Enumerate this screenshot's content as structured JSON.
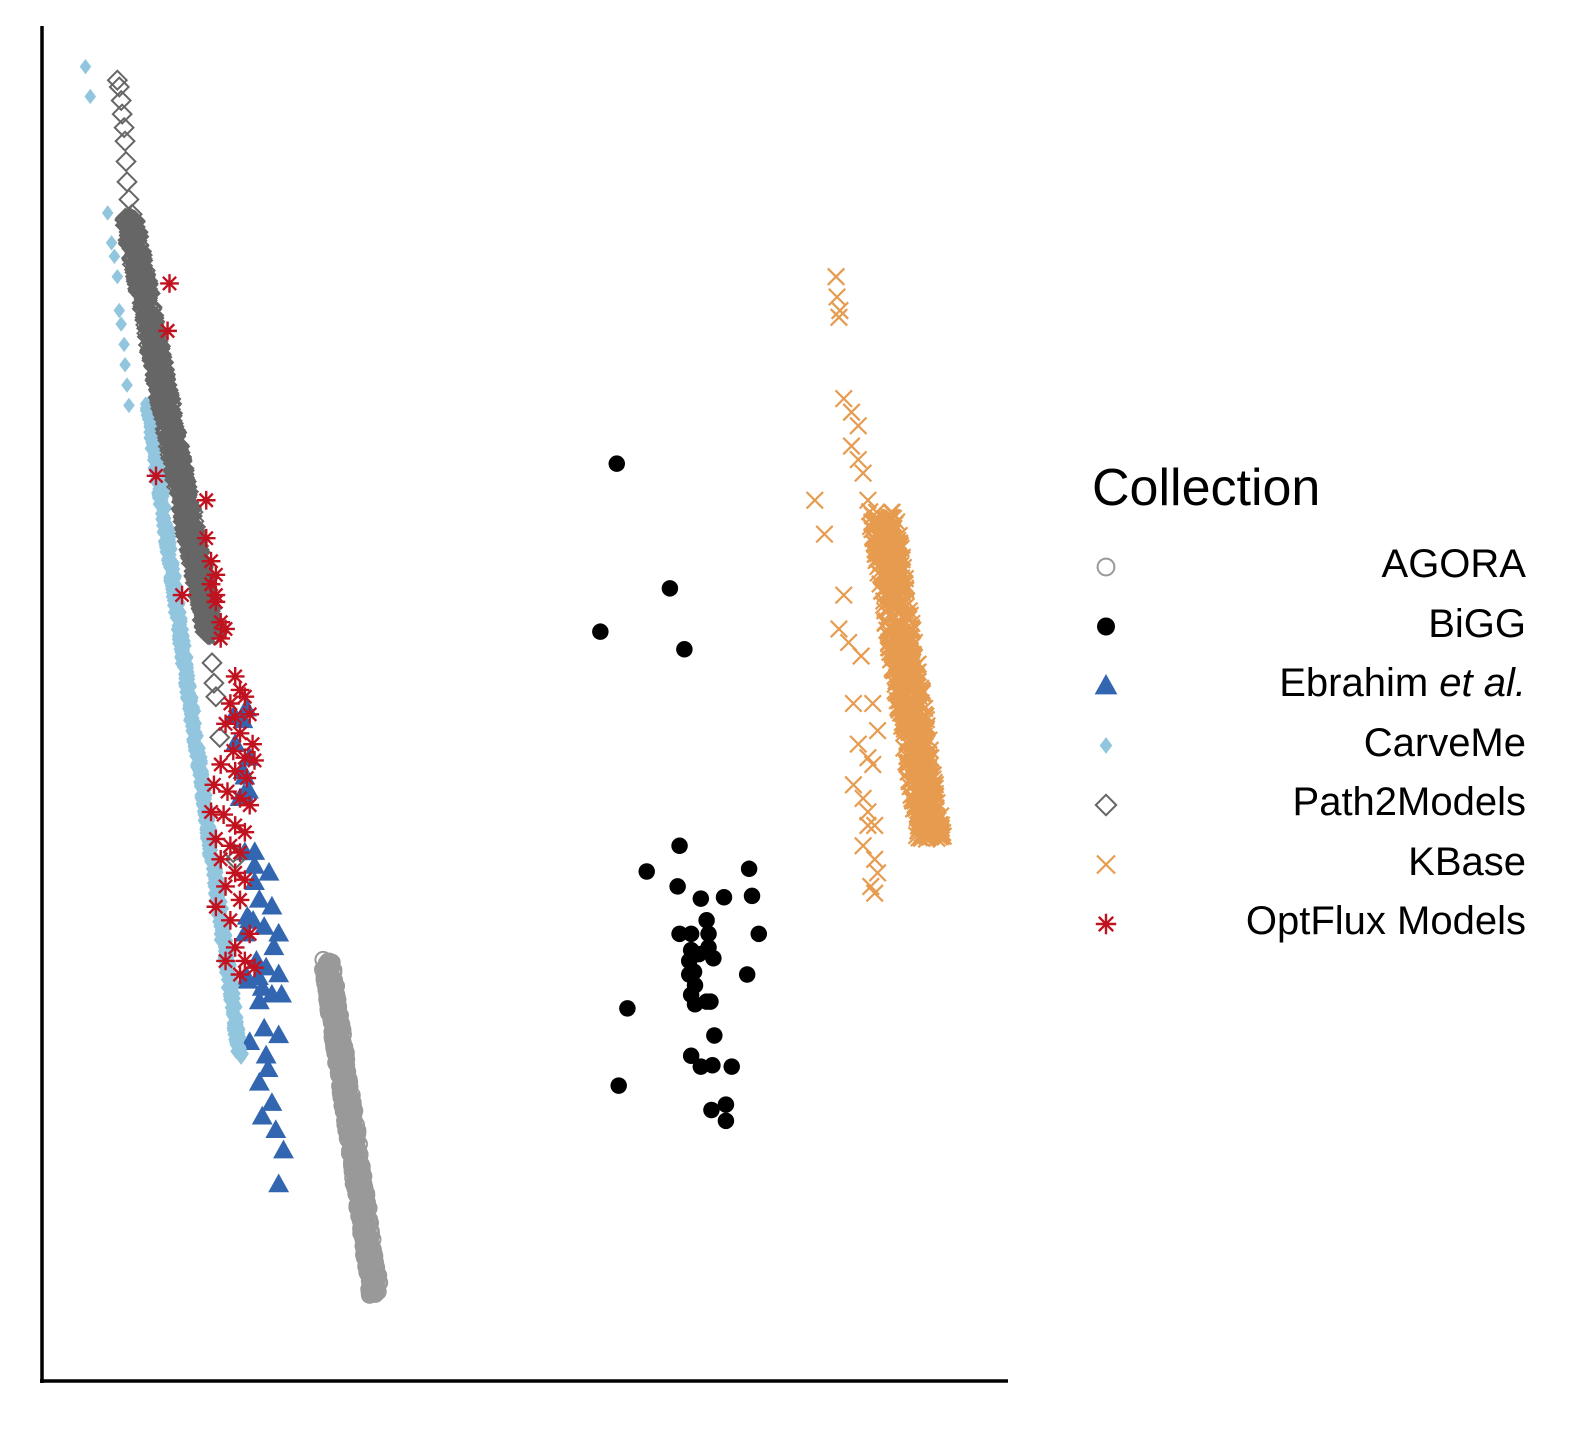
{
  "chart_data": {
    "type": "scatter",
    "title": "",
    "xlabel": "",
    "ylabel": "",
    "grid": false,
    "axes": {
      "left": true,
      "bottom": true,
      "ticks": false
    },
    "xlim": [
      0,
      1
    ],
    "ylim": [
      0,
      1
    ],
    "legend": {
      "title": "Collection",
      "placement": "right"
    },
    "series": [
      {
        "name": "AGORA",
        "marker": "open-circle",
        "color": "#999999",
        "band": {
          "x": [
            0.295,
            0.345
          ],
          "y": [
            0.065,
            0.31
          ],
          "n": 700,
          "width": 0.006
        },
        "points": [
          [
            0.295,
            0.305
          ],
          [
            0.298,
            0.292
          ],
          [
            0.296,
            0.282
          ],
          [
            0.3,
            0.265
          ],
          [
            0.305,
            0.245
          ],
          [
            0.345,
            0.068
          ],
          [
            0.338,
            0.085
          ]
        ]
      },
      {
        "name": "BiGG",
        "marker": "filled-circle",
        "color": "#000000",
        "points": [
          [
            0.595,
            0.677
          ],
          [
            0.65,
            0.585
          ],
          [
            0.578,
            0.553
          ],
          [
            0.665,
            0.54
          ],
          [
            0.66,
            0.395
          ],
          [
            0.626,
            0.376
          ],
          [
            0.658,
            0.365
          ],
          [
            0.682,
            0.356
          ],
          [
            0.706,
            0.357
          ],
          [
            0.732,
            0.378
          ],
          [
            0.735,
            0.358
          ],
          [
            0.688,
            0.34
          ],
          [
            0.66,
            0.33
          ],
          [
            0.672,
            0.33
          ],
          [
            0.69,
            0.33
          ],
          [
            0.742,
            0.33
          ],
          [
            0.69,
            0.32
          ],
          [
            0.672,
            0.318
          ],
          [
            0.67,
            0.31
          ],
          [
            0.68,
            0.315
          ],
          [
            0.675,
            0.302
          ],
          [
            0.695,
            0.312
          ],
          [
            0.73,
            0.3
          ],
          [
            0.67,
            0.3
          ],
          [
            0.676,
            0.292
          ],
          [
            0.672,
            0.285
          ],
          [
            0.688,
            0.28
          ],
          [
            0.692,
            0.28
          ],
          [
            0.676,
            0.278
          ],
          [
            0.606,
            0.275
          ],
          [
            0.696,
            0.255
          ],
          [
            0.672,
            0.24
          ],
          [
            0.682,
            0.232
          ],
          [
            0.694,
            0.233
          ],
          [
            0.714,
            0.232
          ],
          [
            0.597,
            0.218
          ],
          [
            0.693,
            0.2
          ],
          [
            0.708,
            0.204
          ],
          [
            0.708,
            0.192
          ]
        ]
      },
      {
        "name": "Ebrahim et al.",
        "marker": "filled-triangle",
        "color": "#3366b0",
        "band": {
          "x": [
            0.195,
            0.225
          ],
          "y": [
            0.28,
            0.56
          ],
          "n": 12,
          "width": 0.01
        },
        "points": [
          [
            0.2,
            0.47
          ],
          [
            0.208,
            0.45
          ],
          [
            0.205,
            0.43
          ],
          [
            0.21,
            0.39
          ],
          [
            0.22,
            0.38
          ],
          [
            0.235,
            0.375
          ],
          [
            0.22,
            0.368
          ],
          [
            0.225,
            0.355
          ],
          [
            0.238,
            0.35
          ],
          [
            0.215,
            0.34
          ],
          [
            0.23,
            0.335
          ],
          [
            0.245,
            0.33
          ],
          [
            0.21,
            0.33
          ],
          [
            0.24,
            0.32
          ],
          [
            0.222,
            0.31
          ],
          [
            0.232,
            0.305
          ],
          [
            0.245,
            0.3
          ],
          [
            0.212,
            0.298
          ],
          [
            0.228,
            0.29
          ],
          [
            0.238,
            0.285
          ],
          [
            0.225,
            0.28
          ],
          [
            0.248,
            0.285
          ],
          [
            0.23,
            0.26
          ],
          [
            0.245,
            0.255
          ],
          [
            0.215,
            0.25
          ],
          [
            0.232,
            0.24
          ],
          [
            0.234,
            0.23
          ],
          [
            0.225,
            0.22
          ],
          [
            0.238,
            0.205
          ],
          [
            0.228,
            0.195
          ],
          [
            0.242,
            0.185
          ],
          [
            0.25,
            0.17
          ],
          [
            0.245,
            0.145
          ]
        ]
      },
      {
        "name": "CarveMe",
        "marker": "filled-diamond",
        "color": "#92c5de",
        "band": {
          "x": [
            0.11,
            0.205
          ],
          "y": [
            0.24,
            0.72
          ],
          "n": 900,
          "width": 0.004
        },
        "points": [
          [
            0.045,
            0.97
          ],
          [
            0.05,
            0.948
          ],
          [
            0.068,
            0.862
          ],
          [
            0.072,
            0.84
          ],
          [
            0.075,
            0.83
          ],
          [
            0.078,
            0.815
          ],
          [
            0.08,
            0.79
          ],
          [
            0.082,
            0.78
          ],
          [
            0.085,
            0.765
          ],
          [
            0.086,
            0.75
          ],
          [
            0.088,
            0.735
          ],
          [
            0.09,
            0.72
          ]
        ]
      },
      {
        "name": "Path2Models",
        "marker": "open-diamond",
        "color": "#666666",
        "band": {
          "x": [
            0.09,
            0.175
          ],
          "y": [
            0.55,
            0.86
          ],
          "n": 900,
          "width": 0.006
        },
        "points": [
          [
            0.078,
            0.96
          ],
          [
            0.08,
            0.955
          ],
          [
            0.082,
            0.945
          ],
          [
            0.083,
            0.935
          ],
          [
            0.085,
            0.925
          ],
          [
            0.086,
            0.915
          ],
          [
            0.087,
            0.9
          ],
          [
            0.088,
            0.885
          ],
          [
            0.09,
            0.872
          ],
          [
            0.176,
            0.53
          ],
          [
            0.178,
            0.515
          ],
          [
            0.18,
            0.505
          ],
          [
            0.184,
            0.475
          ],
          [
            0.198,
            0.39
          ],
          [
            0.2,
            0.385
          ]
        ]
      },
      {
        "name": "KBase",
        "marker": "cross",
        "color": "#e69b4f",
        "band": {
          "x": [
            0.87,
            0.92
          ],
          "y": [
            0.4,
            0.64
          ],
          "n": 700,
          "width": 0.014
        },
        "points": [
          [
            0.822,
            0.815
          ],
          [
            0.823,
            0.8
          ],
          [
            0.826,
            0.79
          ],
          [
            0.825,
            0.785
          ],
          [
            0.83,
            0.725
          ],
          [
            0.838,
            0.715
          ],
          [
            0.845,
            0.705
          ],
          [
            0.838,
            0.69
          ],
          [
            0.845,
            0.68
          ],
          [
            0.85,
            0.67
          ],
          [
            0.855,
            0.65
          ],
          [
            0.8,
            0.65
          ],
          [
            0.81,
            0.625
          ],
          [
            0.83,
            0.58
          ],
          [
            0.825,
            0.555
          ],
          [
            0.835,
            0.545
          ],
          [
            0.848,
            0.535
          ],
          [
            0.84,
            0.5
          ],
          [
            0.845,
            0.47
          ],
          [
            0.855,
            0.46
          ],
          [
            0.84,
            0.44
          ],
          [
            0.855,
            0.41
          ],
          [
            0.85,
            0.395
          ],
          [
            0.862,
            0.385
          ],
          [
            0.865,
            0.375
          ],
          [
            0.858,
            0.365
          ],
          [
            0.862,
            0.36
          ],
          [
            0.86,
            0.5
          ],
          [
            0.865,
            0.48
          ],
          [
            0.86,
            0.455
          ],
          [
            0.85,
            0.43
          ],
          [
            0.855,
            0.42
          ],
          [
            0.862,
            0.41
          ]
        ]
      },
      {
        "name": "OptFlux Models",
        "marker": "asterisk",
        "color": "#c1121f",
        "points": [
          [
            0.132,
            0.81
          ],
          [
            0.13,
            0.775
          ],
          [
            0.118,
            0.668
          ],
          [
            0.17,
            0.65
          ],
          [
            0.17,
            0.622
          ],
          [
            0.175,
            0.605
          ],
          [
            0.18,
            0.595
          ],
          [
            0.175,
            0.588
          ],
          [
            0.18,
            0.575
          ],
          [
            0.145,
            0.58
          ],
          [
            0.18,
            0.58
          ],
          [
            0.185,
            0.56
          ],
          [
            0.19,
            0.555
          ],
          [
            0.185,
            0.548
          ],
          [
            0.2,
            0.52
          ],
          [
            0.205,
            0.51
          ],
          [
            0.195,
            0.5
          ],
          [
            0.21,
            0.505
          ],
          [
            0.2,
            0.49
          ],
          [
            0.215,
            0.492
          ],
          [
            0.19,
            0.485
          ],
          [
            0.205,
            0.478
          ],
          [
            0.218,
            0.47
          ],
          [
            0.198,
            0.465
          ],
          [
            0.21,
            0.46
          ],
          [
            0.22,
            0.458
          ],
          [
            0.185,
            0.455
          ],
          [
            0.2,
            0.45
          ],
          [
            0.212,
            0.445
          ],
          [
            0.178,
            0.44
          ],
          [
            0.192,
            0.435
          ],
          [
            0.205,
            0.43
          ],
          [
            0.215,
            0.425
          ],
          [
            0.175,
            0.42
          ],
          [
            0.188,
            0.418
          ],
          [
            0.2,
            0.41
          ],
          [
            0.21,
            0.405
          ],
          [
            0.18,
            0.4
          ],
          [
            0.195,
            0.395
          ],
          [
            0.205,
            0.39
          ],
          [
            0.185,
            0.385
          ],
          [
            0.2,
            0.375
          ],
          [
            0.21,
            0.37
          ],
          [
            0.19,
            0.365
          ],
          [
            0.205,
            0.355
          ],
          [
            0.18,
            0.35
          ],
          [
            0.195,
            0.34
          ],
          [
            0.2,
            0.32
          ],
          [
            0.215,
            0.33
          ],
          [
            0.21,
            0.31
          ],
          [
            0.19,
            0.31
          ],
          [
            0.22,
            0.305
          ],
          [
            0.205,
            0.3
          ]
        ]
      }
    ]
  }
}
